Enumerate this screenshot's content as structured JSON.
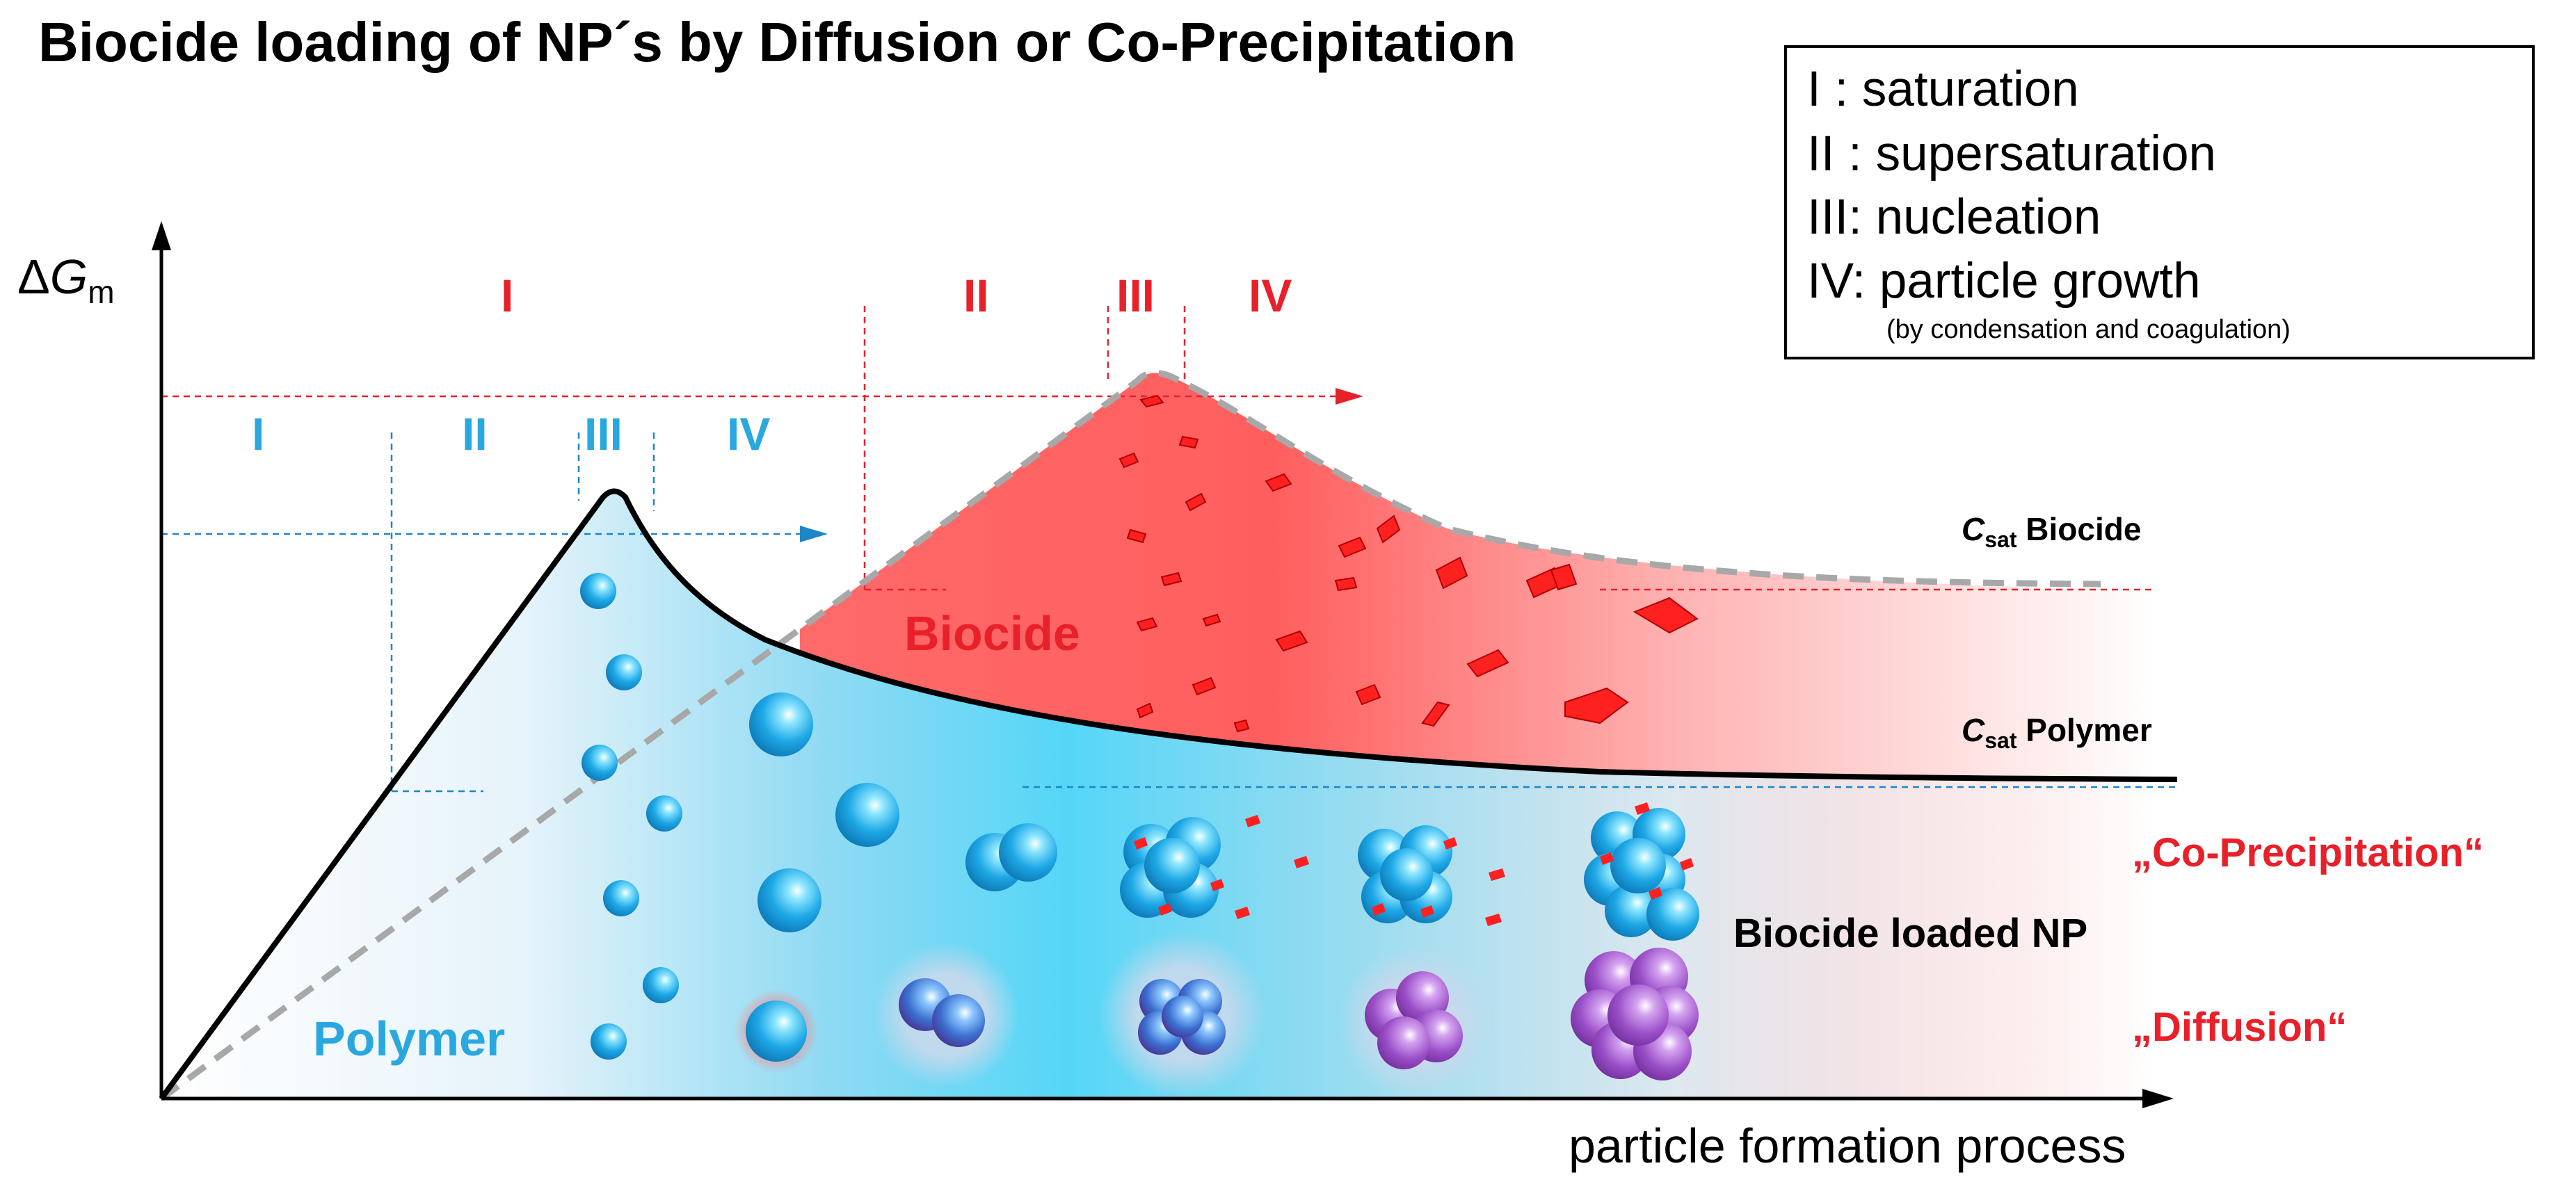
{
  "title": "Biocide loading of NP´s by Diffusion or Co-Precipitation",
  "legend": {
    "items": [
      {
        "roman": "I",
        "sep": " : ",
        "text": "saturation"
      },
      {
        "roman": "II",
        "sep": " : ",
        "text": "supersaturation"
      },
      {
        "roman": "III",
        "sep": ": ",
        "text": "nucleation"
      },
      {
        "roman": "IV",
        "sep": ": ",
        "text": "particle growth"
      }
    ],
    "note": "(by condensation and coagulation)"
  },
  "axes": {
    "y_delta": "Δ",
    "y_symbol": "G",
    "y_sub": "m",
    "x_label": "particle formation process"
  },
  "phases_polymer": [
    "I",
    "II",
    "III",
    "IV"
  ],
  "phases_biocide": [
    "I",
    "II",
    "III",
    "IV"
  ],
  "curves": {
    "biocide": {
      "symbol": "C",
      "sub": "sat",
      "name": "Biocide"
    },
    "polymer": {
      "symbol": "C",
      "sub": "sat",
      "name": "Polymer"
    }
  },
  "regions": {
    "biocide": "Biocide",
    "polymer": "Polymer"
  },
  "methods": {
    "co_precipitation": "„Co-Precipitation“",
    "diffusion": "„Diffusion“"
  },
  "np_label": "Biocide loaded NP",
  "colors": {
    "polymer_blue": "#29a8e0",
    "biocide_red": "#e8202a",
    "dashed_gray": "#a8a8a8",
    "purple": "#9b4fc8"
  }
}
